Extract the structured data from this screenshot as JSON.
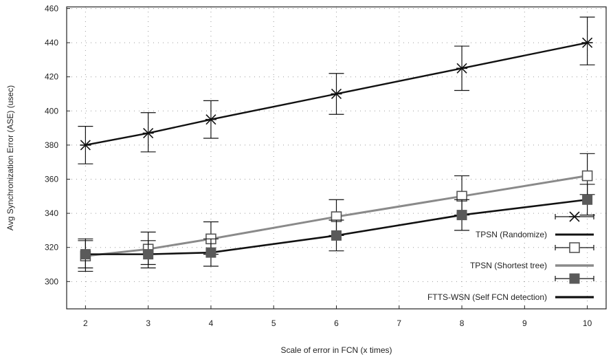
{
  "chart_data": {
    "type": "line",
    "xlabel": "Scale of error in FCN (x times)",
    "ylabel": "Avg Synchronization Error (ASE) (usec)",
    "x_ticks": [
      "2",
      "3",
      "4",
      "5",
      "6",
      "7",
      "8",
      "9",
      "10"
    ],
    "y_ticks": [
      "300",
      "320",
      "340",
      "360",
      "380",
      "400",
      "420",
      "440",
      "460"
    ],
    "xlim": [
      1.7,
      10.3
    ],
    "ylim": [
      284,
      461
    ],
    "grid": true,
    "legend_position": "bottom-right",
    "x": [
      2,
      3,
      4,
      6,
      8,
      10
    ],
    "series": [
      {
        "name": "TPSN (Randomize)",
        "color": "#111111",
        "marker": "asterisk",
        "values": [
          380,
          387,
          395,
          410,
          425,
          440
        ],
        "err_low": [
          369,
          376,
          384,
          398,
          412,
          427
        ],
        "err_high": [
          391,
          399,
          406,
          422,
          438,
          455
        ]
      },
      {
        "name": "TPSN (Shortest tree)",
        "color": "#7a7a7a",
        "marker": "open-square",
        "values": [
          315,
          319,
          325,
          338,
          350,
          362
        ],
        "err_low": [
          306,
          310,
          316,
          327,
          339,
          351
        ],
        "err_high": [
          325,
          329,
          335,
          348,
          362,
          375
        ]
      },
      {
        "name": "FTTS-WSN (Self FCN detection)",
        "color": "#111111",
        "marker": "filled-square",
        "values": [
          316,
          316,
          317,
          327,
          339,
          348
        ],
        "err_low": [
          308,
          308,
          309,
          318,
          330,
          339
        ],
        "err_high": [
          324,
          324,
          325,
          336,
          348,
          357
        ]
      }
    ]
  }
}
